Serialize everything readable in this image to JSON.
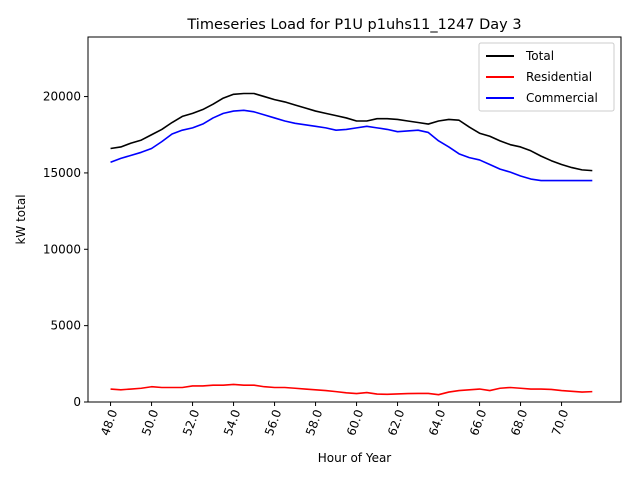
{
  "chart_data": {
    "type": "line",
    "title": "Timeseries Load for P1U p1uhs11_1247  Day 3",
    "xlabel": "Hour of Year",
    "ylabel": "kW total",
    "xlim": [
      46.9,
      72.9
    ],
    "ylim": [
      0,
      23900
    ],
    "x_ticks": [
      48,
      50,
      52,
      54,
      56,
      58,
      60,
      62,
      64,
      66,
      68,
      70
    ],
    "x_tick_labels": [
      "48.0",
      "50.0",
      "52.0",
      "54.0",
      "56.0",
      "58.0",
      "60.0",
      "62.0",
      "64.0",
      "66.0",
      "68.0",
      "70.0"
    ],
    "y_ticks": [
      0,
      5000,
      10000,
      15000,
      20000
    ],
    "y_tick_labels": [
      "0",
      "5000",
      "10000",
      "15000",
      "20000"
    ],
    "grid": false,
    "legend_position": "top-right",
    "x": [
      48.0,
      48.5,
      49.0,
      49.5,
      50.0,
      50.5,
      51.0,
      51.5,
      52.0,
      52.5,
      53.0,
      53.5,
      54.0,
      54.5,
      55.0,
      55.5,
      56.0,
      56.5,
      57.0,
      57.5,
      58.0,
      58.5,
      59.0,
      59.5,
      60.0,
      60.5,
      61.0,
      61.5,
      62.0,
      62.5,
      63.0,
      63.5,
      64.0,
      64.5,
      65.0,
      65.5,
      66.0,
      66.5,
      67.0,
      67.5,
      68.0,
      68.5,
      69.0,
      69.5,
      70.0,
      70.5,
      71.0,
      71.5
    ],
    "series": [
      {
        "name": "Total",
        "color": "#000000",
        "values": [
          16600,
          16700,
          16950,
          17150,
          17500,
          17850,
          18300,
          18700,
          18900,
          19150,
          19500,
          19900,
          20150,
          20200,
          20200,
          20000,
          19800,
          19650,
          19450,
          19250,
          19050,
          18900,
          18750,
          18600,
          18400,
          18400,
          18550,
          18550,
          18500,
          18400,
          18300,
          18200,
          18400,
          18500,
          18450,
          18000,
          17600,
          17400,
          17100,
          16850,
          16700,
          16450,
          16100,
          15800,
          15550,
          15350,
          15200,
          15150
        ]
      },
      {
        "name": "Residential",
        "color": "#ff0000",
        "values": [
          850,
          800,
          850,
          900,
          1000,
          950,
          950,
          950,
          1050,
          1050,
          1100,
          1100,
          1150,
          1100,
          1100,
          1000,
          950,
          950,
          900,
          850,
          800,
          750,
          680,
          600,
          550,
          620,
          520,
          500,
          530,
          550,
          560,
          560,
          480,
          650,
          750,
          800,
          850,
          750,
          900,
          950,
          900,
          850,
          850,
          820,
          750,
          700,
          650,
          680
        ]
      },
      {
        "name": "Commercial",
        "color": "#0000ff",
        "values": [
          15700,
          15950,
          16150,
          16350,
          16600,
          17050,
          17550,
          17800,
          17950,
          18200,
          18600,
          18900,
          19050,
          19100,
          19000,
          18800,
          18600,
          18400,
          18250,
          18150,
          18050,
          17950,
          17800,
          17850,
          17950,
          18050,
          17950,
          17850,
          17700,
          17750,
          17800,
          17650,
          17100,
          16700,
          16250,
          16000,
          15850,
          15550,
          15250,
          15050,
          14800,
          14600,
          14500,
          14500,
          14500,
          14500,
          14500,
          14500
        ]
      }
    ]
  }
}
